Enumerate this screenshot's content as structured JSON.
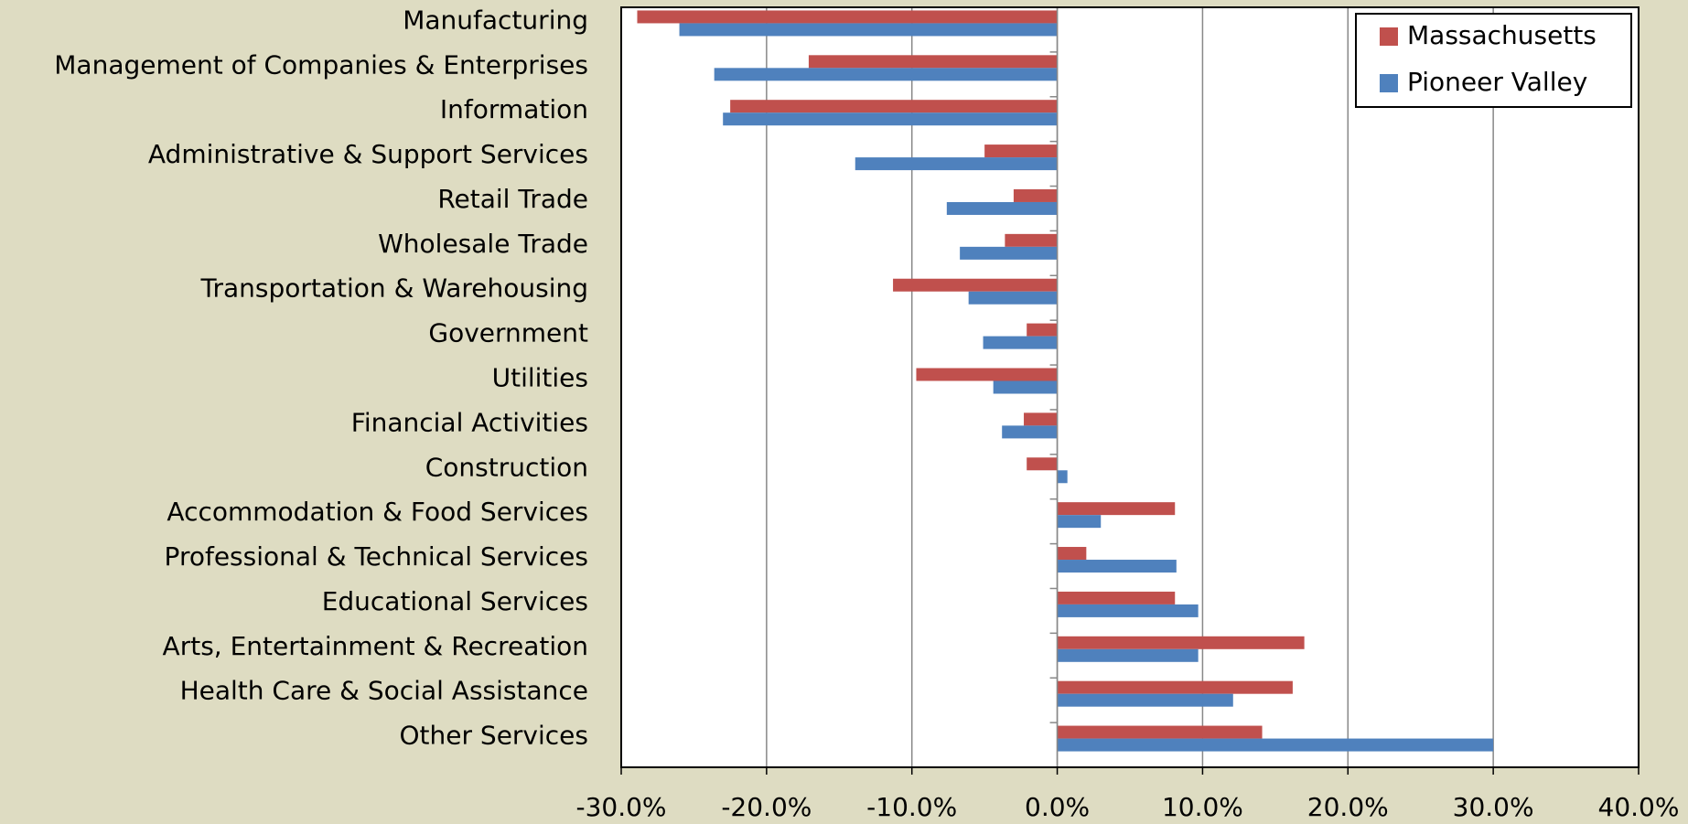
{
  "chart_data": {
    "type": "hbar",
    "categories": [
      "Manufacturing",
      "Management of Companies & Enterprises",
      "Information",
      "Administrative & Support Services",
      "Retail Trade",
      "Wholesale Trade",
      "Transportation & Warehousing",
      "Government",
      "Utilities",
      "Financial Activities",
      "Construction",
      "Accommodation & Food Services",
      "Professional & Technical Services",
      "Educational Services",
      "Arts, Entertainment & Recreation",
      "Health Care & Social Assistance",
      "Other Services"
    ],
    "series": [
      {
        "name": "Massachusetts",
        "color": "#c0504d",
        "values": [
          -28.9,
          -17.1,
          -22.5,
          -5.0,
          -3.0,
          -3.6,
          -11.3,
          -2.1,
          -9.7,
          -2.3,
          -2.1,
          8.1,
          2.0,
          8.1,
          17.0,
          16.2,
          14.1
        ]
      },
      {
        "name": "Pioneer Valley",
        "color": "#4f81bd",
        "values": [
          -26.0,
          -23.6,
          -23.0,
          -13.9,
          -7.6,
          -6.7,
          -6.1,
          -5.1,
          -4.4,
          -3.8,
          0.7,
          3.0,
          8.2,
          9.7,
          9.7,
          12.1,
          30.0
        ]
      }
    ],
    "xlim": [
      -30,
      40
    ],
    "xticks": [
      {
        "value": -30,
        "label": "-30.0%"
      },
      {
        "value": -20,
        "label": "-20.0%"
      },
      {
        "value": -10,
        "label": "-10.0%"
      },
      {
        "value": 0,
        "label": "0.0%"
      },
      {
        "value": 10,
        "label": "10.0%"
      },
      {
        "value": 20,
        "label": "20.0%"
      },
      {
        "value": 30,
        "label": "30.0%"
      },
      {
        "value": 40,
        "label": "40.0%"
      }
    ],
    "grid": true,
    "legend": "top-right"
  }
}
